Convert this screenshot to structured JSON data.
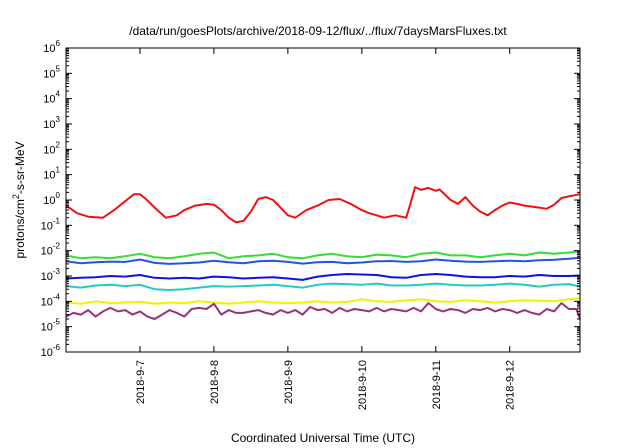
{
  "chart_data": {
    "type": "line",
    "title": "/data/run/goesPlots/archive/2018-09-12/flux/../flux/7daysMarsFluxes.txt",
    "xlabel": "Coordinated Universal Time (UTC)",
    "ylabel_base": "protons/cm",
    "ylabel_sup": "2",
    "ylabel_tail": "-s-sr-MeV",
    "yscale": "log",
    "ylim_exp": [
      -6,
      6
    ],
    "ytick_base": "10",
    "ytick_exps": [
      "-6",
      "-5",
      "-4",
      "-3",
      "-2",
      "-1",
      "0",
      "1",
      "2",
      "3",
      "4",
      "5",
      "6"
    ],
    "xlim": [
      6.0,
      12.95
    ],
    "xticks": [
      {
        "label": "2018-9-7",
        "value": 7
      },
      {
        "label": "2018-9-8",
        "value": 8
      },
      {
        "label": "2018-9-9",
        "value": 9
      },
      {
        "label": "2018-9-10",
        "value": 10
      },
      {
        "label": "2018-9-11",
        "value": 11
      },
      {
        "label": "2018-9-12",
        "value": 12
      }
    ],
    "grid": false,
    "series": [
      {
        "color": "#ee1111",
        "x": [
          6.0,
          6.15,
          6.3,
          6.5,
          6.65,
          6.8,
          6.92,
          7.0,
          7.08,
          7.2,
          7.35,
          7.5,
          7.6,
          7.75,
          7.9,
          8.0,
          8.1,
          8.2,
          8.3,
          8.4,
          8.5,
          8.6,
          8.7,
          8.8,
          8.9,
          9.0,
          9.1,
          9.25,
          9.4,
          9.55,
          9.7,
          9.85,
          10.0,
          10.1,
          10.2,
          10.3,
          10.45,
          10.6,
          10.65,
          10.72,
          10.8,
          10.9,
          11.0,
          11.05,
          11.1,
          11.2,
          11.3,
          11.4,
          11.5,
          11.6,
          11.7,
          11.8,
          11.9,
          12.0,
          12.1,
          12.2,
          12.3,
          12.4,
          12.5,
          12.6,
          12.7,
          12.8,
          12.95
        ],
        "y": [
          0.6,
          0.3,
          0.22,
          0.2,
          0.4,
          0.9,
          1.7,
          1.7,
          1.1,
          0.5,
          0.2,
          0.25,
          0.4,
          0.6,
          0.7,
          0.65,
          0.4,
          0.2,
          0.13,
          0.15,
          0.35,
          1.1,
          1.3,
          1.0,
          0.5,
          0.25,
          0.2,
          0.4,
          0.6,
          1.0,
          1.1,
          0.7,
          0.4,
          0.3,
          0.25,
          0.2,
          0.25,
          0.2,
          0.6,
          3.2,
          2.5,
          3.0,
          2.3,
          2.6,
          1.9,
          1.0,
          0.7,
          1.3,
          0.6,
          0.35,
          0.25,
          0.4,
          0.6,
          0.8,
          0.7,
          0.6,
          0.55,
          0.5,
          0.45,
          0.65,
          1.2,
          1.4,
          1.7
        ]
      },
      {
        "color": "#33dd33",
        "x": [
          6.0,
          6.2,
          6.4,
          6.6,
          6.8,
          7.0,
          7.2,
          7.4,
          7.6,
          7.8,
          8.0,
          8.2,
          8.4,
          8.6,
          8.8,
          9.0,
          9.2,
          9.4,
          9.6,
          9.8,
          10.0,
          10.2,
          10.4,
          10.6,
          10.8,
          11.0,
          11.2,
          11.4,
          11.6,
          11.8,
          12.0,
          12.2,
          12.4,
          12.6,
          12.8,
          12.95
        ],
        "y": [
          0.0065,
          0.005,
          0.0055,
          0.005,
          0.006,
          0.0075,
          0.0055,
          0.005,
          0.006,
          0.0075,
          0.0085,
          0.005,
          0.006,
          0.0065,
          0.0075,
          0.0055,
          0.005,
          0.0065,
          0.0075,
          0.006,
          0.0055,
          0.007,
          0.0065,
          0.0055,
          0.0075,
          0.0085,
          0.0065,
          0.0065,
          0.0055,
          0.0065,
          0.0075,
          0.0065,
          0.0085,
          0.0075,
          0.0085,
          0.0095
        ]
      },
      {
        "color": "#2255dd",
        "x": [
          6.0,
          6.2,
          6.4,
          6.6,
          6.8,
          7.0,
          7.2,
          7.4,
          7.6,
          7.8,
          8.0,
          8.2,
          8.4,
          8.6,
          8.8,
          9.0,
          9.2,
          9.4,
          9.6,
          9.8,
          10.0,
          10.2,
          10.4,
          10.6,
          10.8,
          11.0,
          11.2,
          11.4,
          11.6,
          11.8,
          12.0,
          12.2,
          12.4,
          12.6,
          12.8,
          12.95
        ],
        "y": [
          0.0038,
          0.0032,
          0.0035,
          0.0037,
          0.0036,
          0.0045,
          0.0033,
          0.003,
          0.0032,
          0.0034,
          0.004,
          0.0035,
          0.0032,
          0.0038,
          0.004,
          0.0036,
          0.0031,
          0.0035,
          0.0036,
          0.0032,
          0.0034,
          0.0038,
          0.0039,
          0.0036,
          0.0038,
          0.0045,
          0.004,
          0.0037,
          0.0036,
          0.0038,
          0.004,
          0.0038,
          0.0042,
          0.0044,
          0.0048,
          0.0053
        ]
      },
      {
        "color": "#1111dd",
        "x": [
          6.0,
          6.2,
          6.4,
          6.6,
          6.8,
          7.0,
          7.2,
          7.4,
          7.6,
          7.8,
          8.0,
          8.2,
          8.4,
          8.6,
          8.8,
          9.0,
          9.2,
          9.4,
          9.6,
          9.8,
          10.0,
          10.2,
          10.4,
          10.6,
          10.8,
          11.0,
          11.2,
          11.4,
          11.6,
          11.8,
          12.0,
          12.2,
          12.4,
          12.6,
          12.8,
          12.95
        ],
        "y": [
          0.0008,
          0.00085,
          0.0009,
          0.001,
          0.00095,
          0.0011,
          0.00085,
          0.0008,
          0.00085,
          0.0008,
          0.00095,
          0.0009,
          0.0008,
          0.00085,
          0.0009,
          0.0008,
          0.0007,
          0.00095,
          0.0011,
          0.0012,
          0.00115,
          0.0011,
          0.0009,
          0.00085,
          0.0011,
          0.0012,
          0.0011,
          0.00095,
          0.0009,
          0.0009,
          0.001,
          0.00095,
          0.0011,
          0.001,
          0.001,
          0.00105
        ]
      },
      {
        "color": "#22ccbb",
        "x": [
          6.0,
          6.2,
          6.4,
          6.6,
          6.8,
          7.0,
          7.2,
          7.4,
          7.6,
          7.8,
          8.0,
          8.2,
          8.4,
          8.6,
          8.8,
          9.0,
          9.2,
          9.4,
          9.6,
          9.8,
          10.0,
          10.2,
          10.4,
          10.6,
          10.8,
          11.0,
          11.2,
          11.4,
          11.6,
          11.8,
          12.0,
          12.2,
          12.4,
          12.6,
          12.8,
          12.95
        ],
        "y": [
          0.0004,
          0.00035,
          0.00042,
          0.00045,
          0.0004,
          0.00045,
          0.0003,
          0.00028,
          0.0003,
          0.00035,
          0.0004,
          0.00038,
          0.0004,
          0.00042,
          0.00045,
          0.0004,
          0.00035,
          0.00045,
          0.0005,
          0.00048,
          0.00045,
          0.0005,
          0.00042,
          0.00042,
          0.00045,
          0.0005,
          0.00045,
          0.00042,
          0.00042,
          0.00045,
          0.0005,
          0.00045,
          0.00038,
          0.00045,
          0.00048,
          0.00038
        ]
      },
      {
        "color": "#f2f200",
        "x": [
          6.0,
          6.2,
          6.4,
          6.6,
          6.8,
          7.0,
          7.2,
          7.4,
          7.6,
          7.8,
          8.0,
          8.2,
          8.4,
          8.6,
          8.8,
          9.0,
          9.2,
          9.4,
          9.6,
          9.8,
          10.0,
          10.2,
          10.4,
          10.6,
          10.8,
          11.0,
          11.2,
          11.4,
          11.6,
          11.8,
          12.0,
          12.2,
          12.4,
          12.6,
          12.8,
          12.95
        ],
        "y": [
          9e-05,
          8e-05,
          0.0001,
          8.5e-05,
          9e-05,
          9.5e-05,
          8e-05,
          9e-05,
          8.5e-05,
          0.0001,
          9e-05,
          8e-05,
          9e-05,
          0.0001,
          9e-05,
          8.5e-05,
          9e-05,
          0.0001,
          9e-05,
          9.5e-05,
          0.00012,
          0.0001,
          9.5e-05,
          0.00011,
          0.00012,
          0.0001,
          9.5e-05,
          0.00011,
          0.0001,
          9e-05,
          0.0001,
          0.00011,
          0.000105,
          0.0001,
          0.00012,
          0.00013
        ]
      },
      {
        "color": "#993377",
        "x": [
          6.0,
          6.1,
          6.2,
          6.3,
          6.4,
          6.5,
          6.6,
          6.7,
          6.8,
          6.9,
          7.0,
          7.1,
          7.2,
          7.3,
          7.4,
          7.5,
          7.6,
          7.7,
          7.8,
          7.9,
          8.0,
          8.1,
          8.2,
          8.3,
          8.4,
          8.5,
          8.6,
          8.7,
          8.8,
          8.9,
          9.0,
          9.1,
          9.2,
          9.3,
          9.4,
          9.5,
          9.6,
          9.7,
          9.8,
          9.9,
          10.0,
          10.1,
          10.2,
          10.3,
          10.4,
          10.5,
          10.6,
          10.7,
          10.8,
          10.9,
          11.0,
          11.1,
          11.2,
          11.3,
          11.4,
          11.5,
          11.6,
          11.7,
          11.8,
          11.9,
          12.0,
          12.1,
          12.2,
          12.3,
          12.4,
          12.5,
          12.6,
          12.7,
          12.8,
          12.9,
          12.95
        ],
        "y": [
          2.5e-05,
          3.5e-05,
          3e-05,
          4.5e-05,
          2.5e-05,
          4e-05,
          5.5e-05,
          4e-05,
          4.5e-05,
          3e-05,
          4e-05,
          2.5e-05,
          2e-05,
          3e-05,
          4.5e-05,
          3.5e-05,
          2.5e-05,
          5e-05,
          5.5e-05,
          5e-05,
          8e-05,
          3e-05,
          4.5e-05,
          3.5e-05,
          3.5e-05,
          4e-05,
          4.5e-05,
          3.5e-05,
          3e-05,
          4.5e-05,
          3.5e-05,
          4.5e-05,
          3e-05,
          6e-05,
          4.5e-05,
          5e-05,
          3.5e-05,
          5.5e-05,
          4e-05,
          5e-05,
          4.5e-05,
          4e-05,
          5.5e-05,
          4e-05,
          5e-05,
          4.5e-05,
          4e-05,
          5.5e-05,
          4e-05,
          8.5e-05,
          5e-05,
          4e-05,
          5e-05,
          4.5e-05,
          3.5e-05,
          5e-05,
          4.5e-05,
          5.5e-05,
          4e-05,
          5e-05,
          4.5e-05,
          3.5e-05,
          4.5e-05,
          3.5e-05,
          3e-05,
          5e-05,
          4e-05,
          8.5e-05,
          5e-05,
          5e-05,
          2e-05
        ]
      }
    ]
  }
}
